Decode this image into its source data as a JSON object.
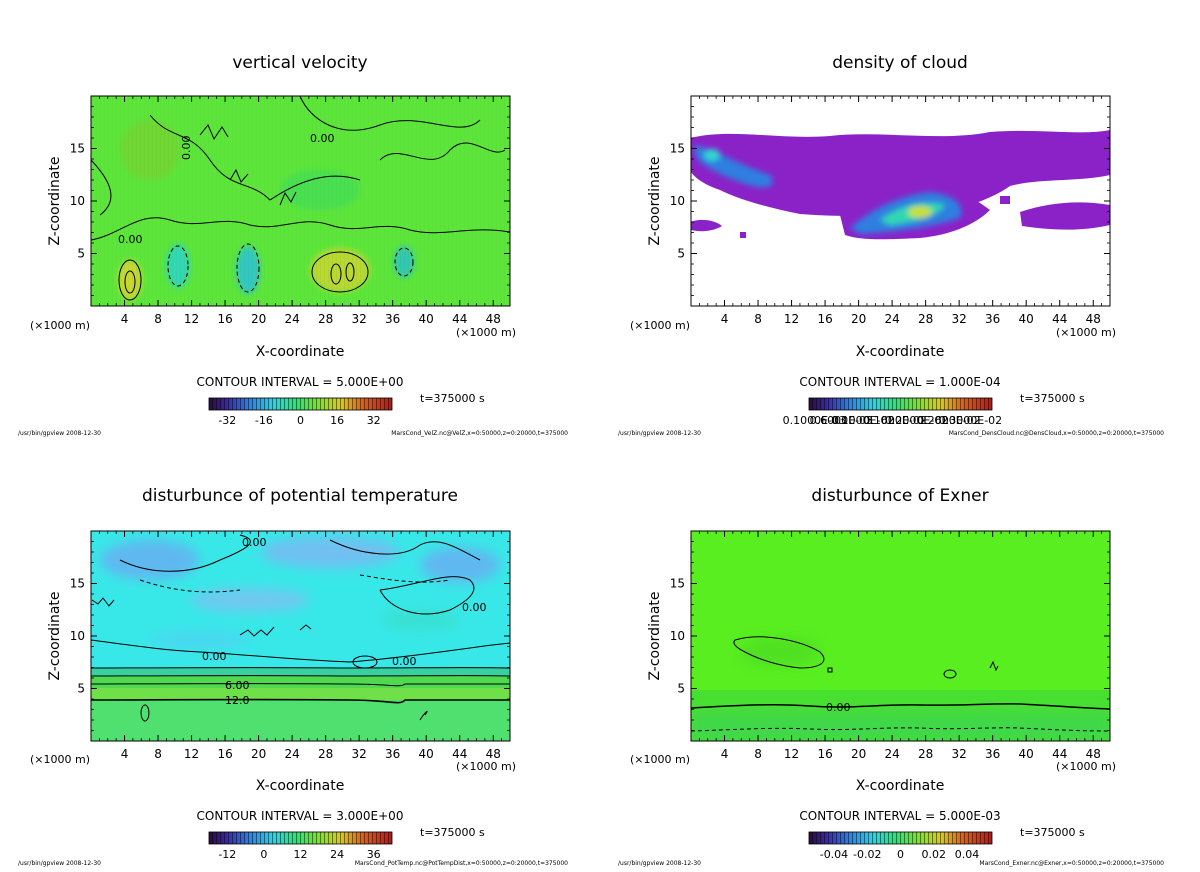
{
  "chart_data": [
    {
      "type": "heatmap",
      "title": "vertical velocity",
      "xlabel": "X-coordinate",
      "ylabel": "Z-coordinate",
      "x_unit_left": "(×1000 m)",
      "x_unit_right": "(×1000 m)",
      "xlim": [
        0,
        50
      ],
      "ylim": [
        0,
        20
      ],
      "xticks": [
        "4",
        "8",
        "12",
        "16",
        "20",
        "24",
        "28",
        "32",
        "36",
        "40",
        "44",
        "48"
      ],
      "yticks": [
        "5",
        "10",
        "15"
      ],
      "contour_labels": [
        "0.00",
        "0.00",
        "0.00"
      ],
      "contour_interval": "CONTOUR INTERVAL = 5.000E+00",
      "time": "t=375000 s",
      "colorbar_ticks": [
        "-32",
        "-16",
        "0",
        "16",
        "32"
      ],
      "colorbar_range": [
        -40,
        40
      ],
      "footer_left": "/usr/bin/gpview  2008-12-30",
      "footer_right": "MarsCond_VelZ.nc@VelZ,x=0:50000,z=0:20000,t=375000"
    },
    {
      "type": "heatmap",
      "title": "density of cloud",
      "xlabel": "X-coordinate",
      "ylabel": "Z-coordinate",
      "x_unit_left": "(×1000 m)",
      "x_unit_right": "(×1000 m)",
      "xlim": [
        0,
        50
      ],
      "ylim": [
        0,
        20
      ],
      "xticks": [
        "4",
        "8",
        "12",
        "16",
        "20",
        "24",
        "28",
        "32",
        "36",
        "40",
        "44",
        "48"
      ],
      "yticks": [
        "5",
        "10",
        "15"
      ],
      "contour_labels": [],
      "contour_interval": "CONTOUR INTERVAL = 1.000E-04",
      "time": "t=375000 s",
      "colorbar_ticks": [
        "0.1000E-03",
        "0.6000E-03",
        "0.1000E-02",
        "0.1600E-02",
        "0.2000E-02",
        "0.2600E-02",
        "0.3000E-02"
      ],
      "colorbar_range": [
        0,
        0.0034
      ],
      "footer_left": "/usr/bin/gpview  2008-12-30",
      "footer_right": "MarsCond_DensCloud.nc@DensCloud,x=0:50000,z=0:20000,t=375000"
    },
    {
      "type": "heatmap",
      "title": "disturbunce of potential temperature",
      "xlabel": "X-coordinate",
      "ylabel": "Z-coordinate",
      "x_unit_left": "(×1000 m)",
      "x_unit_right": "(×1000 m)",
      "xlim": [
        0,
        50
      ],
      "ylim": [
        0,
        20
      ],
      "xticks": [
        "4",
        "8",
        "12",
        "16",
        "20",
        "24",
        "28",
        "32",
        "36",
        "40",
        "44",
        "48"
      ],
      "yticks": [
        "5",
        "10",
        "15"
      ],
      "contour_labels": [
        "0.00",
        "0.00",
        "0.00",
        "0.00",
        "6.00",
        "12.0"
      ],
      "contour_interval": "CONTOUR INTERVAL = 3.000E+00",
      "time": "t=375000 s",
      "colorbar_ticks": [
        "-12",
        "0",
        "12",
        "24",
        "36"
      ],
      "colorbar_range": [
        -18,
        42
      ],
      "footer_left": "/usr/bin/gpview  2008-12-30",
      "footer_right": "MarsCond_PotTemp.nc@PotTempDist,x=0:50000,z=0:20000,t=375000"
    },
    {
      "type": "heatmap",
      "title": "disturbunce of Exner",
      "xlabel": "X-coordinate",
      "ylabel": "Z-coordinate",
      "x_unit_left": "(×1000 m)",
      "x_unit_right": "(×1000 m)",
      "xlim": [
        0,
        50
      ],
      "ylim": [
        0,
        20
      ],
      "xticks": [
        "4",
        "8",
        "12",
        "16",
        "20",
        "24",
        "28",
        "32",
        "36",
        "40",
        "44",
        "48"
      ],
      "yticks": [
        "5",
        "10",
        "15"
      ],
      "contour_labels": [
        "0.00"
      ],
      "contour_interval": "CONTOUR INTERVAL = 5.000E-03",
      "time": "t=375000 s",
      "colorbar_ticks": [
        "-0.04",
        "-0.02",
        "0",
        "0.02",
        "0.04"
      ],
      "colorbar_range": [
        -0.055,
        0.055
      ],
      "footer_left": "/usr/bin/gpview  2008-12-30",
      "footer_right": "MarsCond_Exner.nc@Exner,x=0:50000,z=0:20000,t=375000"
    }
  ]
}
